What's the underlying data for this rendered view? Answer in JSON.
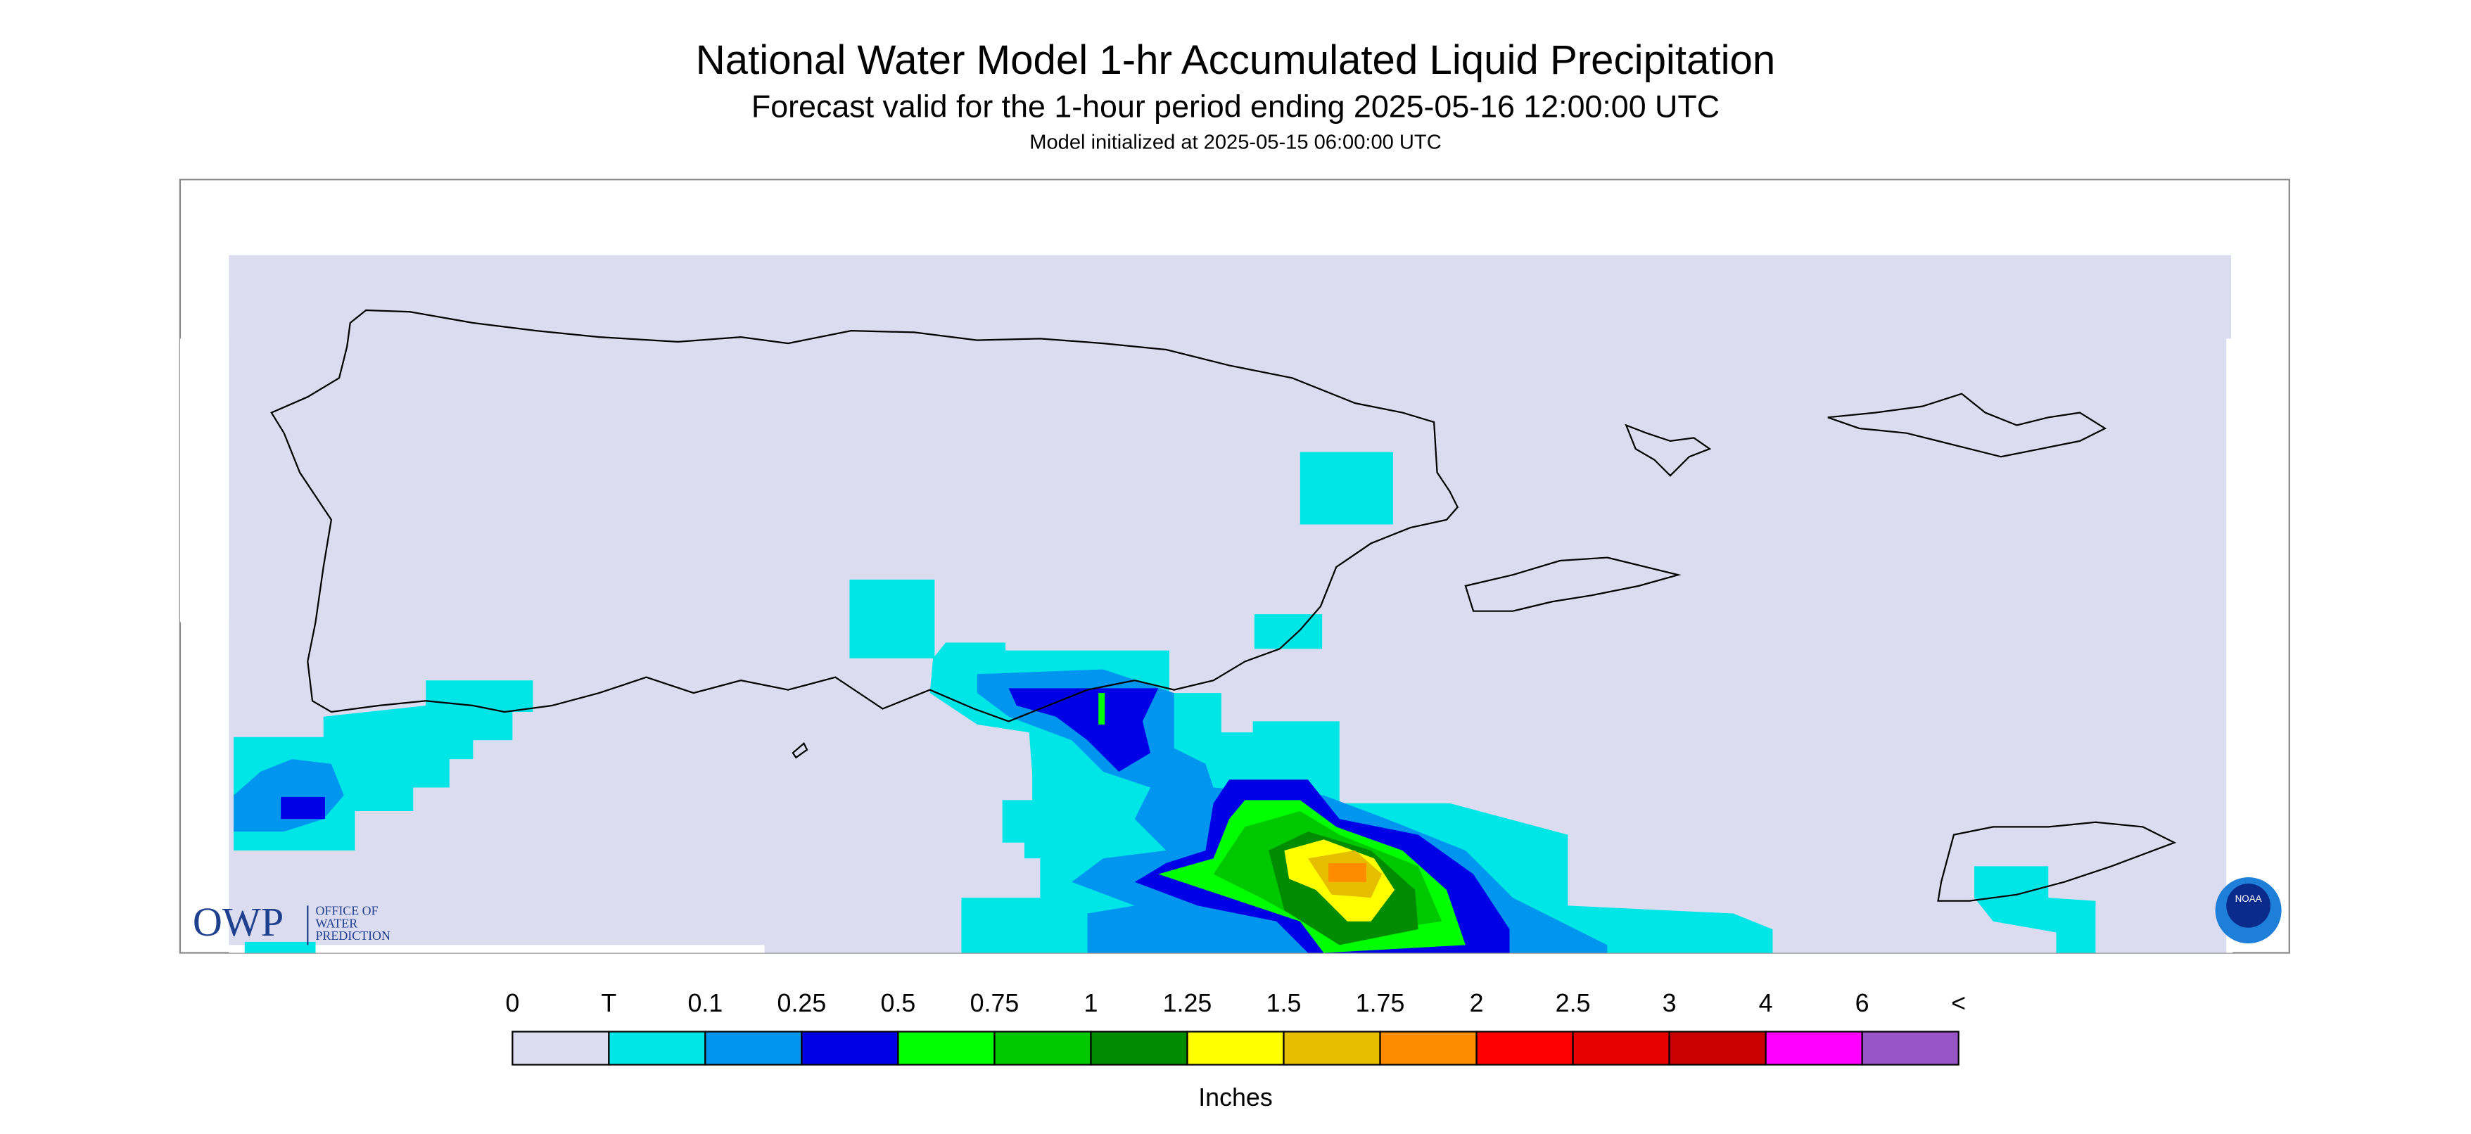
{
  "header": {
    "title": "National Water Model 1-hr Accumulated Liquid Precipitation",
    "subtitle": "Forecast valid for the 1-hour period ending 2025-05-16 12:00:00 UTC",
    "init": "Model initialized at 2025-05-15 06:00:00 UTC"
  },
  "logos": {
    "owp": "OWP",
    "owp_lines": [
      "OFFICE OF",
      "WATER",
      "PREDICTION"
    ],
    "noaa": "NOAA"
  },
  "legend": {
    "labels": [
      "0",
      "T",
      "0.1",
      "0.25",
      "0.5",
      "0.75",
      "1",
      "1.25",
      "1.5",
      "1.75",
      "2",
      "2.5",
      "3",
      "4",
      "6",
      "<"
    ],
    "colors": [
      "#dcdcf0",
      "#00e6e6",
      "#0096f0",
      "#0000e6",
      "#00ff00",
      "#00c800",
      "#008c00",
      "#ffff00",
      "#e6be00",
      "#ff8c00",
      "#ff0000",
      "#e60000",
      "#c80000",
      "#ff00ff",
      "#9955c8"
    ],
    "unit": "Inches"
  }
}
